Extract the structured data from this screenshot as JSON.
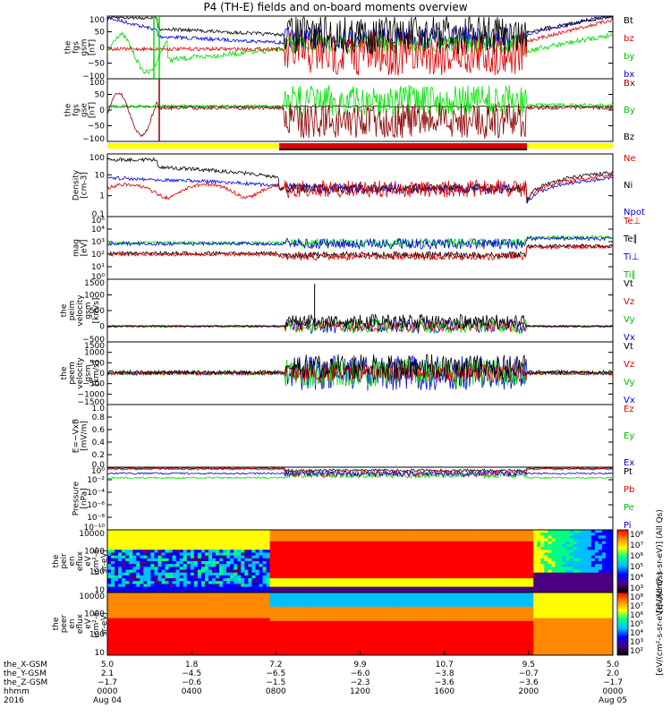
{
  "title": "P4 (TH-E) fields and on-board moments overview",
  "colors": {
    "black": "#000000",
    "red": "#e00000",
    "green": "#00e000",
    "blue": "#0000e0",
    "darkred": "#8b0000",
    "yellow": "#ffff00",
    "orange": "#ff8800",
    "cyan": "#00e0e0"
  },
  "chart_data": [
    {
      "type": "line",
      "ylabel": [
        "the",
        "fgs",
        "gsm",
        "[nT]"
      ],
      "yticks": [
        "100",
        "50",
        "0",
        "−50",
        "−100"
      ],
      "ylim": [
        -100,
        100
      ],
      "legend": [
        {
          "name": "Bt",
          "color": "#000000"
        },
        {
          "name": "bz",
          "color": "#e00000"
        },
        {
          "name": "by",
          "color": "#00c000"
        },
        {
          "name": "bx",
          "color": "#0000e0"
        }
      ]
    },
    {
      "type": "line",
      "ylabel": [
        "the",
        "fgs",
        "gse",
        "[nT]"
      ],
      "yticks": [
        "100",
        "50",
        "0",
        "−50",
        "−100"
      ],
      "ylim": [
        -120,
        120
      ],
      "legend": [
        {
          "name": "Bx",
          "color": "#8b0000"
        },
        {
          "name": "By",
          "color": "#00c000"
        },
        {
          "name": "Bz",
          "color": "#000000"
        }
      ]
    },
    {
      "type": "line",
      "ylabel": [
        "Density",
        "[cm-3]"
      ],
      "yticks": [
        "100",
        "10",
        "1",
        "0.1"
      ],
      "ylim_log": [
        0.1,
        200
      ],
      "legend": [
        {
          "name": "Ne",
          "color": "#e00000"
        },
        {
          "name": "Ni",
          "color": "#000000"
        },
        {
          "name": "Npot",
          "color": "#0000e0"
        }
      ]
    },
    {
      "type": "line",
      "ylabel": [
        "mag",
        "[eV]"
      ],
      "yticks": [
        "10⁶",
        "10⁴",
        "10³",
        "10²",
        "10¹",
        "10⁰"
      ],
      "ylim_log": [
        1,
        1000000
      ],
      "legend": [
        {
          "name": "Te⊥",
          "color": "#e00000"
        },
        {
          "name": "Te∥",
          "color": "#000000"
        },
        {
          "name": "Ti⊥",
          "color": "#0000e0"
        },
        {
          "name": "Ti∥",
          "color": "#00c000"
        }
      ]
    },
    {
      "type": "line",
      "ylabel": [
        "the",
        "peim",
        "velocity",
        "gsm",
        "[km/s]"
      ],
      "yticks": [
        "1500",
        "1000",
        "500",
        "0",
        "−500"
      ],
      "ylim": [
        -500,
        1500
      ],
      "legend": [
        {
          "name": "Vt",
          "color": "#000000"
        },
        {
          "name": "Vz",
          "color": "#e00000"
        },
        {
          "name": "Vy",
          "color": "#00c000"
        },
        {
          "name": "Vx",
          "color": "#0000e0"
        }
      ]
    },
    {
      "type": "line",
      "ylabel": [
        "the",
        "peem",
        "velocity",
        "gsm",
        "[km/s]"
      ],
      "yticks": [
        "1500",
        "1000",
        "500",
        "0",
        "−500",
        "−1000",
        "−1500"
      ],
      "ylim": [
        -1500,
        1500
      ],
      "legend": [
        {
          "name": "Vt",
          "color": "#000000"
        },
        {
          "name": "Vz",
          "color": "#e00000"
        },
        {
          "name": "Vy",
          "color": "#00c000"
        },
        {
          "name": "Vx",
          "color": "#0000e0"
        }
      ]
    },
    {
      "type": "line",
      "ylabel": [
        "E=−VxB",
        "[mV/m]"
      ],
      "yticks": [
        "1.0",
        "0.8",
        "0.6",
        "0.4",
        "0.2",
        "0.0"
      ],
      "ylim": [
        0,
        1
      ],
      "legend": [
        {
          "name": "Ez",
          "color": "#e00000"
        },
        {
          "name": "Ey",
          "color": "#00c000"
        },
        {
          "name": "Ex",
          "color": "#0000e0"
        }
      ]
    },
    {
      "type": "line",
      "ylabel": [
        "Pressure",
        "[nPa]"
      ],
      "yticks": [
        "10⁰",
        "10⁻²",
        "10⁻⁴",
        "10⁻⁶",
        "10⁻⁸",
        "10⁻¹⁰"
      ],
      "ylim_log": [
        1e-10,
        1
      ],
      "legend": [
        {
          "name": "Pt",
          "color": "#000000"
        },
        {
          "name": "Pb",
          "color": "#e00000"
        },
        {
          "name": "Pe",
          "color": "#00c000"
        },
        {
          "name": "Pi",
          "color": "#0000e0"
        }
      ]
    },
    {
      "type": "heatmap",
      "ylabel": [
        "the",
        "peir",
        "en",
        "eflux",
        "eV",
        "(cm²-s-",
        "sr-eV)"
      ],
      "yticks": [
        "10000",
        "1000",
        "100",
        "10"
      ],
      "colorbar": [
        "10⁸",
        "10⁷",
        "10⁶",
        "10⁵",
        "10⁴",
        "10³"
      ],
      "colorbar_label": "[eV/(cm²-s-sr-eV)] (All Qs)"
    },
    {
      "type": "heatmap",
      "ylabel": [
        "the",
        "peer",
        "en",
        "eflux",
        "eV",
        "(cm²-s-",
        "sr-eV)"
      ],
      "yticks": [
        "10000",
        "1000",
        "100",
        "10"
      ],
      "colorbar": [
        "10⁸",
        "10⁷",
        "10⁶",
        "10⁵",
        "10⁴",
        "10³",
        "10²"
      ],
      "colorbar_label": "[eV/(cm²-s-sr-eV)] (All Qs)"
    }
  ],
  "x_axis": {
    "row_labels": [
      "the_X-GSM",
      "the_Y-GSM",
      "the_Z-GSM",
      "hhmm",
      "2016"
    ],
    "ticks": [
      {
        "vals": [
          "5.0",
          "2.1",
          "−1.7",
          "0000",
          "Aug 04"
        ]
      },
      {
        "vals": [
          "1.8",
          "−4.5",
          "−0.6",
          "0400",
          ""
        ]
      },
      {
        "vals": [
          "7.2",
          "−6.5",
          "−1.5",
          "0800",
          ""
        ]
      },
      {
        "vals": [
          "9.9",
          "−6.0",
          "−2.3",
          "1200",
          ""
        ]
      },
      {
        "vals": [
          "10.7",
          "−3.8",
          "−3.6",
          "1600",
          ""
        ]
      },
      {
        "vals": [
          "9.5",
          "−0.7",
          "−3.6",
          "2000",
          ""
        ]
      },
      {
        "vals": [
          "5.0",
          "2.0",
          "−1.7",
          "0000",
          "Aug 05"
        ]
      }
    ]
  }
}
